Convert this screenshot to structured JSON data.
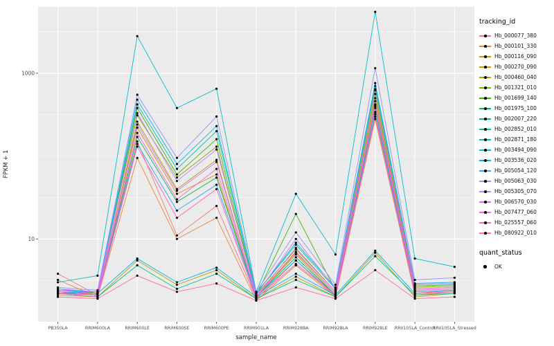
{
  "figure": {
    "xlabel": "sample_name",
    "ylabel": "FPKM + 1"
  },
  "legend": {
    "tracking_title": "tracking_id",
    "quant_title": "quant_status",
    "quant_ok_label": "OK"
  },
  "axes": {
    "y_ticks": [
      {
        "label": "10",
        "value": 10
      },
      {
        "label": "1000",
        "value": 1000
      }
    ]
  },
  "chart_data": {
    "type": "line",
    "title": "",
    "xlabel": "sample_name",
    "ylabel": "FPKM + 1",
    "y_scale": "log10",
    "ylim": [
      1,
      6300
    ],
    "grid": "on",
    "legend_position": "right",
    "panel_bg": "#EBEBEB",
    "grid_color": "#FFFFFF",
    "point_color": "#000000",
    "categories": [
      "PB350LA",
      "RRIM600LA",
      "RRIM600LE",
      "RRIM600SE",
      "RRIM600PE",
      "RRIM901LA",
      "RRIM928BA",
      "RRIM928LA",
      "RRIM928LE",
      "RRII105LA_Control",
      "RRII105LA_Stressed"
    ],
    "series": [
      {
        "name": "Hb_000077_380",
        "color": "#F8766D",
        "values": [
          3.8,
          2.1,
          150,
          11,
          25,
          1.9,
          5.5,
          2.0,
          320,
          2.2,
          2.4
        ]
      },
      {
        "name": "Hb_000101_330",
        "color": "#EA8331",
        "values": [
          3.2,
          2.0,
          95,
          10,
          18,
          1.8,
          4.8,
          2.0,
          280,
          2.1,
          2.3
        ]
      },
      {
        "name": "Hb_000116_090",
        "color": "#D89000",
        "values": [
          2.2,
          2.2,
          220,
          35,
          60,
          2.0,
          6.5,
          2.1,
          420,
          2.4,
          2.5
        ]
      },
      {
        "name": "Hb_000270_090",
        "color": "#C09B00",
        "values": [
          2.1,
          2.0,
          5.5,
          2.8,
          4.2,
          1.9,
          3.5,
          2.0,
          6.8,
          2.0,
          2.2
        ]
      },
      {
        "name": "Hb_000460_040",
        "color": "#A3A500",
        "values": [
          2.3,
          2.1,
          260,
          40,
          90,
          2.0,
          7.0,
          2.2,
          500,
          2.5,
          2.6
        ]
      },
      {
        "name": "Hb_001321_010",
        "color": "#7CAE00",
        "values": [
          2.2,
          2.3,
          310,
          55,
          130,
          2.1,
          7.5,
          2.3,
          560,
          2.6,
          2.7
        ]
      },
      {
        "name": "Hb_001699_140",
        "color": "#39B600",
        "values": [
          2.4,
          2.2,
          380,
          60,
          160,
          2.1,
          20,
          2.4,
          640,
          2.7,
          2.8
        ]
      },
      {
        "name": "Hb_001975_100",
        "color": "#00BB4E",
        "values": [
          2.3,
          2.1,
          170,
          28,
          55,
          2.0,
          6.0,
          2.1,
          380,
          2.3,
          2.4
        ]
      },
      {
        "name": "Hb_002007_220",
        "color": "#00BF7D",
        "values": [
          2.2,
          2.0,
          4.8,
          2.5,
          3.8,
          1.9,
          3.2,
          2.0,
          6.2,
          2.1,
          2.2
        ]
      },
      {
        "name": "Hb_002852_010",
        "color": "#00C1A3",
        "values": [
          2.5,
          2.2,
          420,
          70,
          200,
          2.2,
          8.5,
          2.5,
          700,
          2.8,
          2.9
        ]
      },
      {
        "name": "Hb_002871_180",
        "color": "#00BFC4",
        "values": [
          3.0,
          3.6,
          2800,
          380,
          650,
          2.3,
          35,
          6.5,
          5500,
          5.8,
          4.6
        ]
      },
      {
        "name": "Hb_003494_090",
        "color": "#00BAE0",
        "values": [
          2.4,
          2.3,
          480,
          80,
          230,
          2.2,
          9.0,
          2.6,
          760,
          2.9,
          3.0
        ]
      },
      {
        "name": "Hb_003536_020",
        "color": "#00B0F6",
        "values": [
          2.3,
          2.2,
          5.8,
          3.0,
          4.5,
          2.0,
          3.8,
          2.1,
          7.2,
          2.2,
          2.3
        ]
      },
      {
        "name": "Hb_005054_120",
        "color": "#35A2FF",
        "values": [
          2.2,
          2.1,
          140,
          22,
          45,
          2.0,
          5.5,
          2.1,
          340,
          2.3,
          2.4
        ]
      },
      {
        "name": "Hb_005063_030",
        "color": "#9590FF",
        "values": [
          2.6,
          2.4,
          550,
          95,
          300,
          2.3,
          12,
          2.8,
          1150,
          3.2,
          3.4
        ]
      },
      {
        "name": "Hb_005305_070",
        "color": "#C77CFF",
        "values": [
          2.5,
          2.3,
          330,
          50,
          120,
          2.1,
          10,
          2.5,
          620,
          2.8,
          2.9
        ]
      },
      {
        "name": "Hb_006570_030",
        "color": "#E76BF3",
        "values": [
          2.4,
          2.2,
          240,
          38,
          85,
          2.0,
          7.8,
          2.3,
          460,
          2.5,
          2.6
        ]
      },
      {
        "name": "Hb_007477_060",
        "color": "#FA62DB",
        "values": [
          2.3,
          2.1,
          190,
          30,
          70,
          2.0,
          6.8,
          2.2,
          400,
          2.4,
          2.5
        ]
      },
      {
        "name": "Hb_025557_060",
        "color": "#FF62BC",
        "values": [
          2.2,
          2.0,
          130,
          18,
          40,
          1.9,
          5.0,
          2.1,
          300,
          2.2,
          2.3
        ]
      },
      {
        "name": "Hb_080922_010",
        "color": "#FF6A98",
        "values": [
          2.0,
          1.9,
          3.6,
          2.3,
          2.9,
          1.8,
          2.6,
          1.9,
          4.2,
          1.9,
          2.0
        ]
      }
    ]
  }
}
